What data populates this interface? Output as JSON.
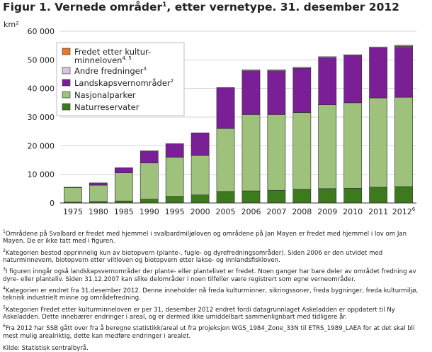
{
  "title": "Figur 1. Vernede områder",
  "title_sup": "1",
  "title_rest": ", etter vernetype. 31. desember 2012",
  "chart_data": {
    "type": "bar",
    "stacked": true,
    "ylabel": "km²",
    "ylim": [
      0,
      60000
    ],
    "yticks": [
      0,
      10000,
      20000,
      30000,
      40000,
      50000,
      60000
    ],
    "ytick_labels": [
      "0",
      "10 000",
      "20 000",
      "30 000",
      "40 000",
      "50 000",
      "60 000"
    ],
    "categories": [
      "1975",
      "1980",
      "1985",
      "1990",
      "1995",
      "2000",
      "2005",
      "2006",
      "2007",
      "2008",
      "2009",
      "2010",
      "2011",
      "2012"
    ],
    "category_sups": [
      "",
      "",
      "",
      "",
      "",
      "",
      "",
      "",
      "",
      "",
      "",
      "",
      "",
      "6"
    ],
    "grid": true,
    "legend_position": "top-left",
    "series": [
      {
        "name": "Naturreservater",
        "sup": "",
        "color": "#3d7a1e",
        "values": [
          300,
          500,
          700,
          1300,
          2300,
          2800,
          4000,
          4200,
          4400,
          4800,
          5000,
          5100,
          5500,
          5700
        ]
      },
      {
        "name": "Nasjonalparker",
        "sup": "",
        "color": "#9ec27c",
        "values": [
          5000,
          5700,
          9800,
          12700,
          13700,
          13800,
          22000,
          26700,
          26500,
          26800,
          29300,
          29900,
          31200,
          31200
        ]
      },
      {
        "name": "Landskapsvernområder",
        "sup": "2",
        "color": "#7a1f96",
        "values": [
          200,
          800,
          1800,
          4200,
          4700,
          7900,
          14300,
          15300,
          15300,
          15500,
          16500,
          16500,
          17500,
          17500
        ]
      },
      {
        "name": "Andre fredninger",
        "sup": "3",
        "color": "#d8c2e6",
        "values": [
          0,
          0,
          0,
          0,
          0,
          0,
          0,
          300,
          300,
          300,
          300,
          300,
          300,
          300
        ]
      },
      {
        "name": "Fredet etter kulturminneloven",
        "sup": "4, 5",
        "color": "#e8772e",
        "values": [
          0,
          0,
          0,
          0,
          0,
          0,
          0,
          0,
          0,
          0,
          0,
          0,
          0,
          400
        ]
      }
    ]
  },
  "legend_entries": [
    {
      "label": "Fredet etter kultur-",
      "label2": "minneloven",
      "sup": "4, 5",
      "color": "#e8772e"
    },
    {
      "label": "Andre fredninger",
      "label2": "",
      "sup": "3",
      "color": "#d8c2e6"
    },
    {
      "label": "Landskapsvernområder",
      "label2": "",
      "sup": "2",
      "color": "#7a1f96"
    },
    {
      "label": "Nasjonalparker",
      "label2": "",
      "sup": "",
      "color": "#9ec27c"
    },
    {
      "label": "Naturreservater",
      "label2": "",
      "sup": "",
      "color": "#3d7a1e"
    }
  ],
  "notes": [
    {
      "sup": "1",
      "text": "Områdene på Svalbard er fredet med hjemmel i svalbardmiljøloven og områdene på Jan Mayen er fredet med hjemmel i lov om Jan Mayen. De er ikke tatt med i figuren."
    },
    {
      "sup": "2",
      "text": "Kategorien bestod opprinnelig kun av biotopvern (plante-, fugle- og dyrefredningsområder). Siden 2006 er den utvidet med naturminnevern, biotopvern etter viltloven og biotopvern etter lakse- og innlandsfiskloven."
    },
    {
      "sup": "3",
      "text": "I figuren inngår også landskapsvernområder der plante- eller plantelivet er fredet. Noen ganger har bare deler av området fredning av dyre- eller planteliv. Siden 31.12.2007 kan slike delområder i noen tilfeller være registrert som egne verneområder."
    },
    {
      "sup": "4",
      "text": "Kategorien er endret fra 31.desember 2012. Denne inneholder nå freda kulturminner, sikringssoner, freda bygninger, freda kulturmiljø, teknisk industrielt minne og områdefredning."
    },
    {
      "sup": "5",
      "text": "Kategorien Fredet etter kulturminneloven er per 31. desember 2012 endret fordi datagrunnlaget Askeladden er oppdatert til Ny Askeladden. Dette innebærer endringer i areal, og er dermed ikke umiddelbart sammenlignbart med tidligere år."
    },
    {
      "sup": "6",
      "text": "Fra 2012 har SSB gått over fra å beregne statistikk/areal ut fra projeksjon WGS_1984_Zone_33N til ETRS_1989_LAEA for at det skal bli mest mulig arealriktig, dette kan medføre endringer i arealet."
    }
  ],
  "source": "Kilde: Statistisk sentralbyrå."
}
